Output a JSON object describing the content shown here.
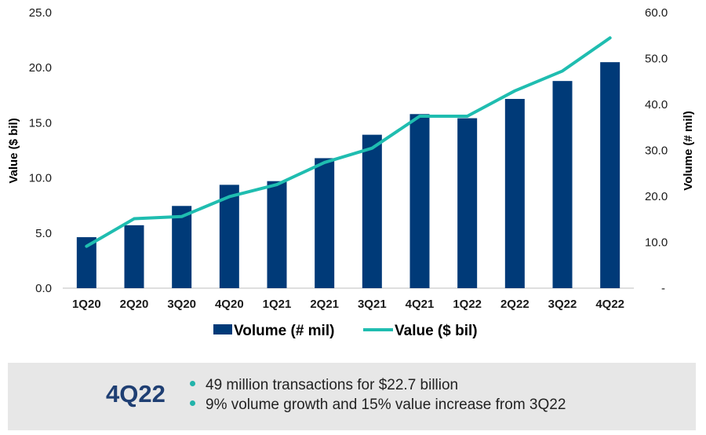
{
  "chart_data": {
    "type": "bar",
    "categories": [
      "1Q20",
      "2Q20",
      "3Q20",
      "4Q20",
      "1Q21",
      "2Q21",
      "3Q21",
      "4Q21",
      "1Q22",
      "2Q22",
      "3Q22",
      "4Q22"
    ],
    "series": [
      {
        "name": "Volume (# mil)",
        "type": "bar",
        "axis": "right",
        "values": [
          11.1,
          13.7,
          17.9,
          22.5,
          23.3,
          28.3,
          33.4,
          37.9,
          37.0,
          41.2,
          45.1,
          49.2
        ],
        "color": "#003a78"
      },
      {
        "name": "Value ($ bil)",
        "type": "line",
        "axis": "left",
        "values": [
          3.8,
          6.3,
          6.5,
          8.3,
          9.4,
          11.4,
          12.7,
          15.6,
          15.6,
          17.9,
          19.7,
          22.7
        ],
        "color": "#1fbdb0"
      }
    ],
    "ylabel_left": "Value ($ bil)",
    "ylabel_right": "Volume (# mil)",
    "ylim_left": [
      0,
      25
    ],
    "ylim_right": [
      0,
      60
    ],
    "yticks_left": [
      "0.0",
      "5.0",
      "10.0",
      "15.0",
      "20.0",
      "25.0"
    ],
    "yticks_right": [
      "-",
      "10.0",
      "20.0",
      "30.0",
      "40.0",
      "50.0",
      "60.0"
    ],
    "grid": false,
    "legend_position": "bottom"
  },
  "summary": {
    "title": "4Q22",
    "bullets": [
      "49 million transactions for $22.7 billion",
      "9% volume growth and 15% value increase from 3Q22"
    ]
  },
  "colors": {
    "bar": "#003a78",
    "line": "#1fbdb0",
    "panel": "#e7e7e7",
    "title": "#1f3f73",
    "bullet": "#22b3aa"
  }
}
